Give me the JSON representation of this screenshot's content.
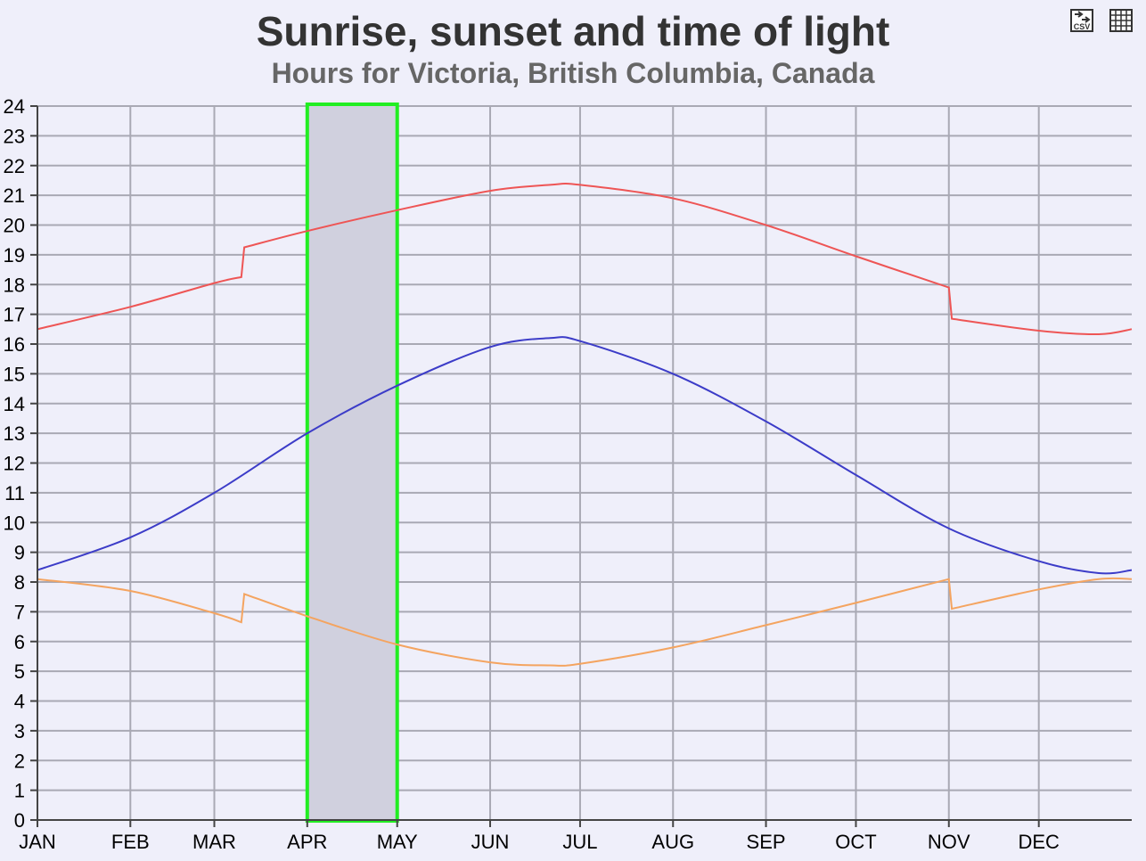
{
  "title": "Sunrise, sunset and time of light",
  "subtitle": "Hours for Victoria, British Columbia, Canada",
  "toolbar": {
    "export_icon": "csv-export-icon",
    "table_icon": "table-grid-icon"
  },
  "colors": {
    "background": "#efeffa",
    "grid": "#a9a9b4",
    "sunset": "#ee5555",
    "daylight": "#3c3cc8",
    "sunrise": "#f4a460",
    "highlight_fill": "#d0d0de",
    "highlight_border": "#22ee22"
  },
  "chart_data": {
    "type": "line",
    "title": "Sunrise, sunset and time of light",
    "subtitle": "Hours for Victoria, British Columbia, Canada",
    "xlabel": "",
    "ylabel": "",
    "x_ticks": [
      "JAN",
      "FEB",
      "MAR",
      "APR",
      "MAY",
      "JUN",
      "JUL",
      "AUG",
      "SEP",
      "OCT",
      "NOV",
      "DEC"
    ],
    "y_ticks": [
      0,
      1,
      2,
      3,
      4,
      5,
      6,
      7,
      8,
      9,
      10,
      11,
      12,
      13,
      14,
      15,
      16,
      17,
      18,
      19,
      20,
      21,
      22,
      23,
      24
    ],
    "ylim": [
      0,
      24
    ],
    "xlim": [
      1,
      366
    ],
    "grid": true,
    "legend": "none",
    "highlight": {
      "from": "APR",
      "to": "MAY"
    },
    "series": [
      {
        "key": "sunset",
        "x": [
          1,
          32,
          60,
          69,
          70,
          91,
          121,
          152,
          172,
          182,
          213,
          244,
          274,
          305,
          306,
          335,
          355,
          366
        ],
        "y": [
          16.5,
          17.25,
          18.05,
          18.25,
          19.25,
          19.8,
          20.5,
          21.15,
          21.35,
          21.35,
          20.9,
          20.0,
          18.95,
          17.9,
          16.85,
          16.45,
          16.33,
          16.5
        ]
      },
      {
        "key": "daylight",
        "x": [
          1,
          32,
          60,
          91,
          121,
          152,
          172,
          182,
          213,
          244,
          274,
          305,
          335,
          355,
          366
        ],
        "y": [
          8.4,
          9.5,
          11.0,
          13.0,
          14.6,
          15.9,
          16.2,
          16.1,
          15.0,
          13.4,
          11.6,
          9.8,
          8.7,
          8.3,
          8.4
        ]
      },
      {
        "key": "sunrise",
        "x": [
          1,
          32,
          60,
          69,
          70,
          91,
          121,
          152,
          172,
          182,
          213,
          244,
          274,
          305,
          306,
          335,
          355,
          366
        ],
        "y": [
          8.1,
          7.7,
          6.95,
          6.65,
          7.6,
          6.85,
          5.9,
          5.3,
          5.2,
          5.25,
          5.8,
          6.55,
          7.3,
          8.1,
          7.1,
          7.75,
          8.1,
          8.1
        ]
      }
    ]
  }
}
